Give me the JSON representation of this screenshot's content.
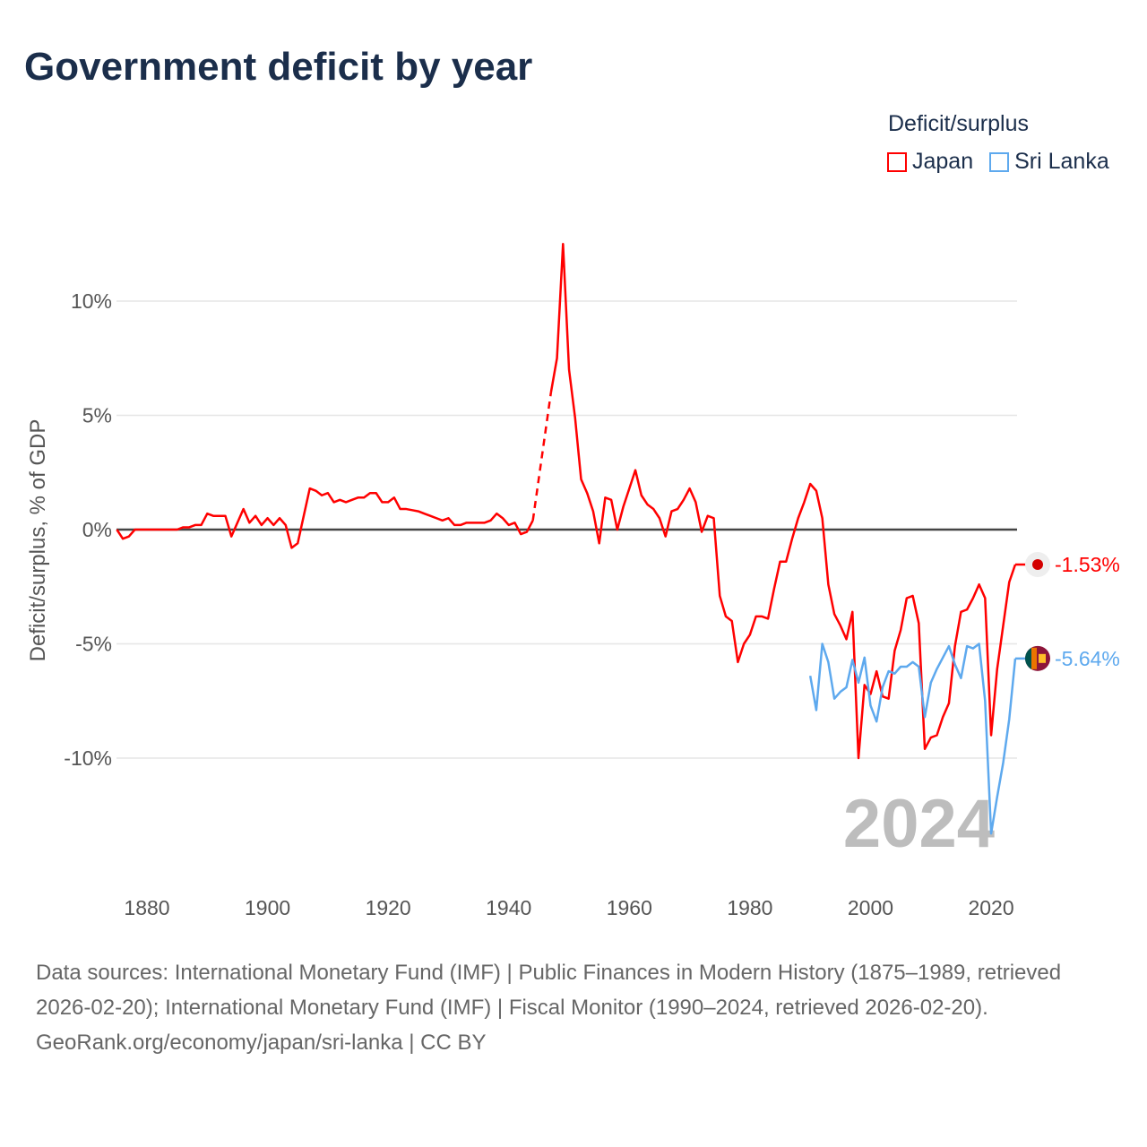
{
  "title": "Government deficit by year",
  "legend": {
    "title": "Deficit/surplus",
    "items": [
      {
        "label": "Japan",
        "color": "#ff0000"
      },
      {
        "label": "Sri Lanka",
        "color": "#5ea9ee"
      }
    ]
  },
  "sources": {
    "text": "Data sources: International Monetary Fund (IMF) | Public Finances in Modern History (1875–1989, retrieved 2026-02-20); International Monetary Fund (IMF) | Fiscal Monitor (1990–2024, retrieved 2026-02-20).",
    "link": "GeoRank.org/economy/japan/sri-lanka | CC BY"
  },
  "chart_data": {
    "type": "line",
    "title": "Government deficit by year",
    "xlabel": "",
    "ylabel": "Deficit/surplus, % of GDP",
    "xlim": [
      1875,
      2024
    ],
    "ylim": [
      -14.5,
      13
    ],
    "x_ticks": [
      {
        "v": 1880,
        "label": "1880"
      },
      {
        "v": 1900,
        "label": "1900"
      },
      {
        "v": 1920,
        "label": "1920"
      },
      {
        "v": 1940,
        "label": "1940"
      },
      {
        "v": 1960,
        "label": "1960"
      },
      {
        "v": 1980,
        "label": "1980"
      },
      {
        "v": 2000,
        "label": "2000"
      },
      {
        "v": 2020,
        "label": "2020"
      }
    ],
    "y_ticks": [
      {
        "v": 10,
        "label": "10%"
      },
      {
        "v": 5,
        "label": "5%"
      },
      {
        "v": 0,
        "label": "0%"
      },
      {
        "v": -5,
        "label": "-5%"
      },
      {
        "v": -10,
        "label": "-10%"
      }
    ],
    "current_year_label": "2024",
    "series": [
      {
        "name": "Japan",
        "color": "#ff0000",
        "end_label": "-1.53%",
        "start_year": 1875,
        "values": [
          0,
          -0.4,
          -0.3,
          0,
          0,
          0,
          0,
          0,
          0,
          0,
          0,
          0.1,
          0.1,
          0.2,
          0.2,
          0.7,
          0.6,
          0.6,
          0.6,
          -0.3,
          0.3,
          0.9,
          0.3,
          0.6,
          0.2,
          0.5,
          0.2,
          0.5,
          0.2,
          -0.8,
          -0.6,
          0.6,
          1.8,
          1.7,
          1.5,
          1.6,
          1.2,
          1.3,
          1.2,
          1.3,
          1.4,
          1.4,
          1.6,
          1.6,
          1.2,
          1.2,
          1.4,
          0.9,
          0.9,
          0.85,
          0.8,
          0.7,
          0.6,
          0.5,
          0.4,
          0.5,
          0.2,
          0.2,
          0.3,
          0.3,
          0.3,
          0.3,
          0.4,
          0.7,
          0.5,
          0.2,
          0.3,
          -0.2,
          -0.1,
          0.4,
          null,
          null,
          6.0,
          7.5,
          12.5,
          7.0,
          4.9,
          2.2,
          1.6,
          0.8,
          -0.6,
          1.4,
          1.3,
          0.0,
          1.0,
          1.8,
          2.6,
          1.5,
          1.1,
          0.9,
          0.5,
          -0.3,
          0.8,
          0.9,
          1.3,
          1.8,
          1.2,
          -0.1,
          0.6,
          0.5,
          -2.9,
          -3.8,
          -4.0,
          -5.8,
          -5.0,
          -4.6,
          -3.8,
          -3.8,
          -3.9,
          -2.6,
          -1.4,
          -1.4,
          -0.4,
          0.5,
          1.2,
          2.0,
          1.7,
          0.5,
          -2.4,
          -3.7,
          -4.2,
          -4.8,
          -3.6,
          -10.0,
          -6.8,
          -7.2,
          -6.2,
          -7.3,
          -7.4,
          -5.3,
          -4.4,
          -3.0,
          -2.9,
          -4.1,
          -9.6,
          -9.1,
          -9.0,
          -8.2,
          -7.6,
          -5.1,
          -3.6,
          -3.5,
          -3.0,
          -2.4,
          -3.0,
          -9.0,
          -6.1,
          -4.2,
          -2.3,
          -1.53
        ]
      },
      {
        "name": "Sri Lanka",
        "color": "#5ea9ee",
        "end_label": "-5.64%",
        "start_year": 1990,
        "values": [
          -6.4,
          -7.9,
          -5.0,
          -5.8,
          -7.4,
          -7.1,
          -6.9,
          -5.7,
          -6.7,
          -5.6,
          -7.7,
          -8.4,
          -6.9,
          -6.2,
          -6.3,
          -6.0,
          -6.0,
          -5.8,
          -6.0,
          -8.2,
          -6.7,
          -6.1,
          -5.6,
          -5.1,
          -5.9,
          -6.5,
          -5.1,
          -5.2,
          -5.0,
          -7.5,
          -13.3,
          -11.7,
          -10.2,
          -8.3,
          -5.64
        ]
      }
    ]
  }
}
